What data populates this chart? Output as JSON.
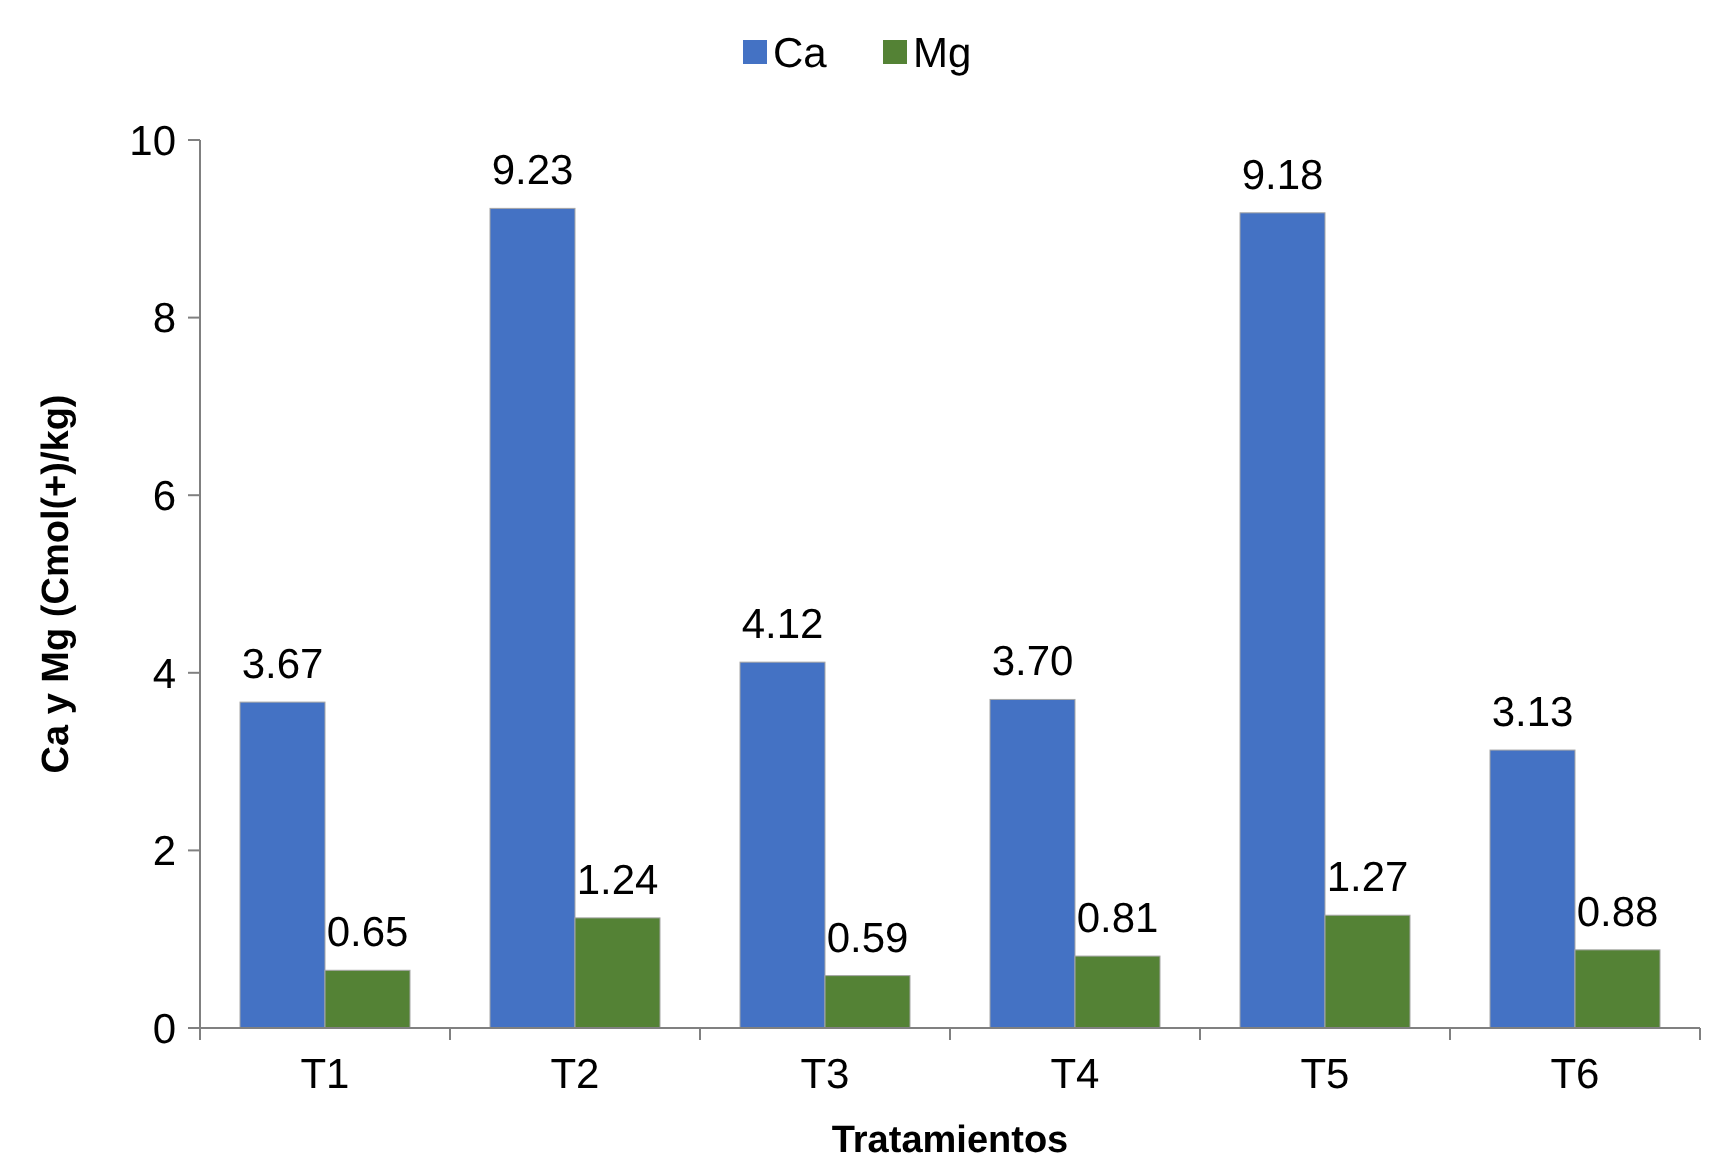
{
  "chart_data": {
    "type": "bar",
    "xlabel": "Tratamientos",
    "ylabel": "Ca y Mg (Cmol(+)/kg)",
    "categories": [
      "T1",
      "T2",
      "T3",
      "T4",
      "T5",
      "T6"
    ],
    "series": [
      {
        "name": "Ca",
        "color": "#4472c4",
        "values": [
          3.67,
          9.23,
          4.12,
          3.7,
          9.18,
          3.13
        ],
        "value_labels": [
          "3.67",
          "9.23",
          "4.12",
          "3.70",
          "9.18",
          "3.13"
        ]
      },
      {
        "name": "Mg",
        "color": "#548235",
        "values": [
          0.65,
          1.24,
          0.59,
          0.81,
          1.27,
          0.88
        ],
        "value_labels": [
          "0.65",
          "1.24",
          "0.59",
          "0.81",
          "1.27",
          "0.88"
        ]
      }
    ],
    "ylim": [
      0,
      10
    ],
    "yticks": [
      0,
      2,
      4,
      6,
      8,
      10
    ],
    "grid": false,
    "legend": "top"
  }
}
